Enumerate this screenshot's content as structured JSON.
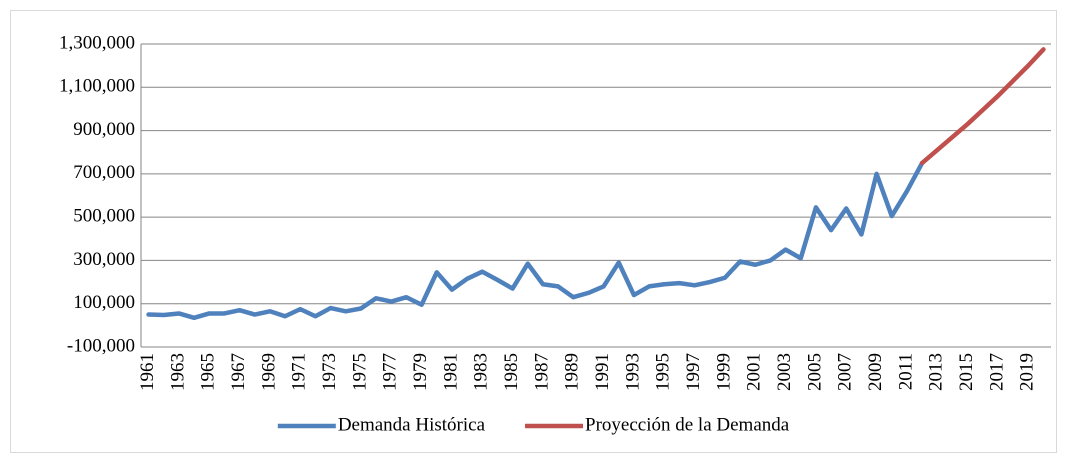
{
  "chart_data": {
    "type": "line",
    "categories": [
      "1961",
      null,
      "1963",
      null,
      "1965",
      null,
      "1967",
      null,
      "1969",
      null,
      "1971",
      null,
      "1973",
      null,
      "1975",
      null,
      "1977",
      null,
      "1979",
      null,
      "1981",
      null,
      "1983",
      null,
      "1985",
      null,
      "1987",
      null,
      "1989",
      null,
      "1991",
      null,
      "1993",
      null,
      "1995",
      null,
      "1997",
      null,
      "1999",
      null,
      "2001",
      null,
      "2003",
      null,
      "2005",
      null,
      "2007",
      null,
      "2009",
      null,
      "2011",
      null,
      "2013",
      null,
      "2015",
      null,
      "2017",
      null,
      "2019",
      null
    ],
    "series": [
      {
        "name": "Demanda Histórica",
        "color": "#4f81bd",
        "values": [
          50000,
          48000,
          55000,
          35000,
          55000,
          55000,
          70000,
          50000,
          65000,
          42000,
          75000,
          42000,
          80000,
          65000,
          78000,
          125000,
          110000,
          130000,
          95000,
          245000,
          165000,
          215000,
          248000,
          210000,
          170000,
          285000,
          190000,
          180000,
          130000,
          150000,
          180000,
          290000,
          140000,
          180000,
          190000,
          195000,
          185000,
          200000,
          220000,
          295000,
          280000,
          300000,
          350000,
          310000,
          545000,
          440000,
          540000,
          420000,
          700000,
          505000,
          620000,
          750000,
          null,
          null,
          null,
          null,
          null,
          null,
          null,
          null
        ]
      },
      {
        "name": "Proyección de la Demanda",
        "color": "#c0504d",
        "values": [
          null,
          null,
          null,
          null,
          null,
          null,
          null,
          null,
          null,
          null,
          null,
          null,
          null,
          null,
          null,
          null,
          null,
          null,
          null,
          null,
          null,
          null,
          null,
          null,
          null,
          null,
          null,
          null,
          null,
          null,
          null,
          null,
          null,
          null,
          null,
          null,
          null,
          null,
          null,
          null,
          null,
          null,
          null,
          null,
          null,
          null,
          null,
          null,
          null,
          null,
          null,
          750000,
          810000,
          870000,
          930000,
          995000,
          1060000,
          1130000,
          1200000,
          1275000
        ]
      }
    ],
    "ylim": [
      -100000,
      1300000
    ],
    "yticks": [
      {
        "value": -100000,
        "label": "-100,000"
      },
      {
        "value": 100000,
        "label": "100,000"
      },
      {
        "value": 300000,
        "label": "300,000"
      },
      {
        "value": 500000,
        "label": "500,000"
      },
      {
        "value": 700000,
        "label": "700,000"
      },
      {
        "value": 900000,
        "label": "900,000"
      },
      {
        "value": 1100000,
        "label": "1,100,000"
      },
      {
        "value": 1300000,
        "label": "1,300,000"
      }
    ],
    "grid": true,
    "legend": "bottom"
  }
}
